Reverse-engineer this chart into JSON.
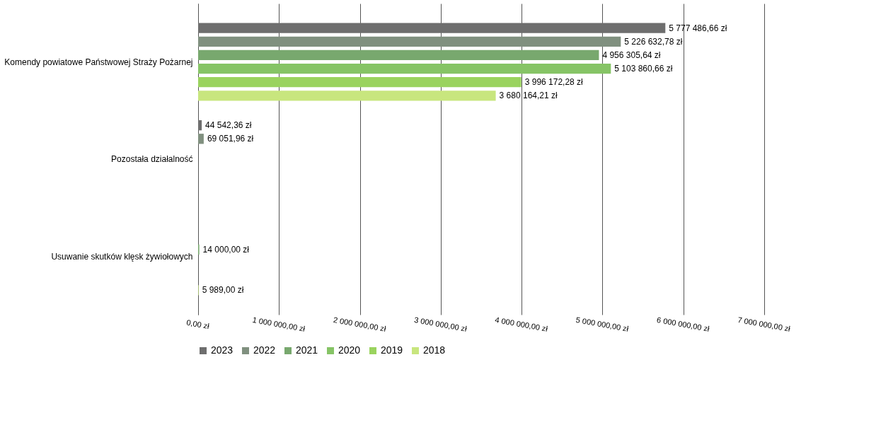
{
  "chart_data": {
    "type": "bar",
    "orientation": "horizontal",
    "categories": [
      "Komendy powiatowe Państwowej Straży Pożarnej",
      "Pozostała działalność",
      "Usuwanie skutków klęsk żywiołowych"
    ],
    "series": [
      {
        "name": "2023",
        "color": "#6e6e6e",
        "values": [
          5777486.66,
          44542.36,
          null
        ],
        "value_labels": [
          "5 777 486,66 zł",
          "44 542,36 zł",
          null
        ]
      },
      {
        "name": "2022",
        "color": "#80907f",
        "values": [
          5226632.78,
          69051.96,
          null
        ],
        "value_labels": [
          "5 226 632,78 zł",
          "69 051,96 zł",
          null
        ]
      },
      {
        "name": "2021",
        "color": "#78a86e",
        "values": [
          4956305.64,
          null,
          14000.0
        ],
        "value_labels": [
          "4 956 305,64 zł",
          null,
          "14 000,00 zł"
        ]
      },
      {
        "name": "2020",
        "color": "#86c466",
        "values": [
          5103860.66,
          null,
          null
        ],
        "value_labels": [
          "5 103 860,66 zł",
          null,
          null
        ]
      },
      {
        "name": "2019",
        "color": "#9ad35e",
        "values": [
          3996172.28,
          null,
          null
        ],
        "value_labels": [
          "3 996 172,28 zł",
          null,
          null
        ]
      },
      {
        "name": "2018",
        "color": "#c8e67e",
        "values": [
          3680164.21,
          null,
          5989.0
        ],
        "value_labels": [
          "3 680 164,21 zł",
          null,
          "5 989,00 zł"
        ]
      }
    ],
    "xlim": [
      0,
      7000000
    ],
    "xticks": [
      {
        "value": 0,
        "label": "0,00 zł"
      },
      {
        "value": 1000000,
        "label": "1 000 000,00 zł"
      },
      {
        "value": 2000000,
        "label": "2 000 000,00 zł"
      },
      {
        "value": 3000000,
        "label": "3 000 000,00 zł"
      },
      {
        "value": 4000000,
        "label": "4 000 000,00 zł"
      },
      {
        "value": 5000000,
        "label": "5 000 000,00 zł"
      },
      {
        "value": 6000000,
        "label": "6 000 000,00 zł"
      },
      {
        "value": 7000000,
        "label": "7 000 000,00 zł"
      }
    ],
    "grid": "x",
    "legend": "bottom"
  }
}
